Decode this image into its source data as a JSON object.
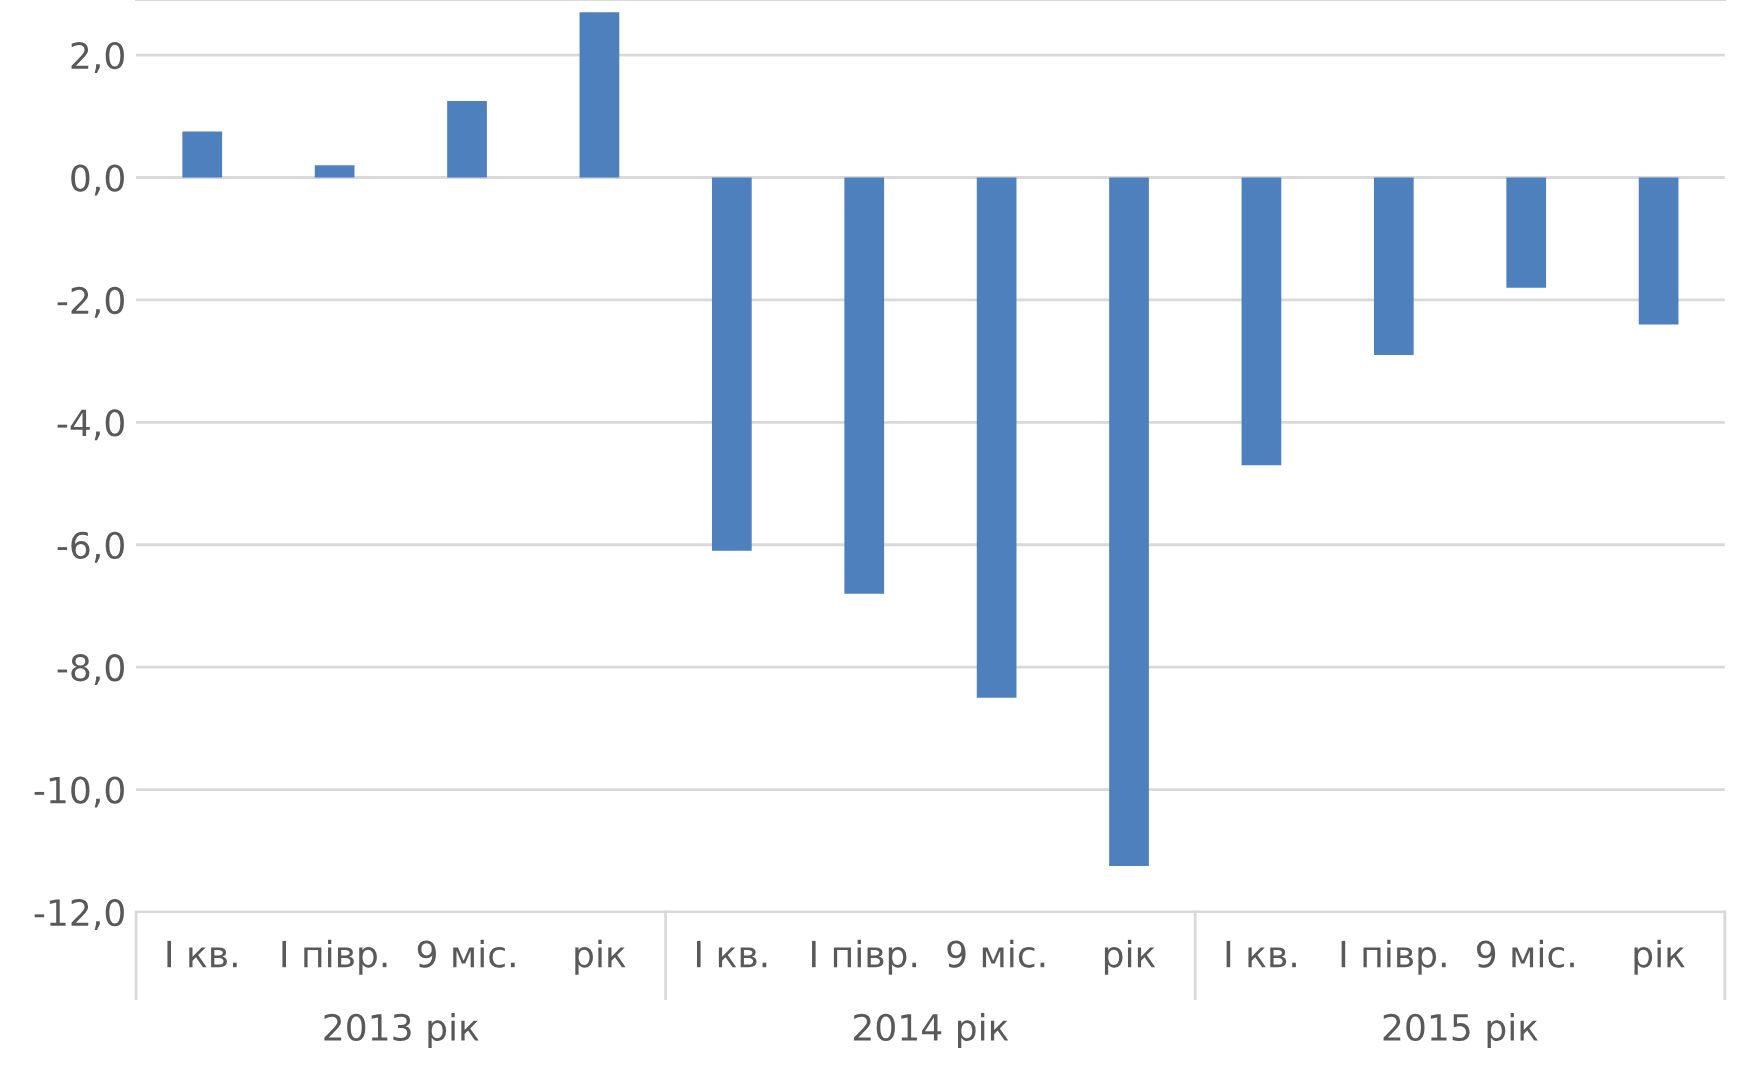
{
  "chart_data": {
    "type": "bar",
    "categories": [
      "I кв.",
      "I півр.",
      "9 міс.",
      "рік",
      "I кв.",
      "I півр.",
      "9 міс.",
      "рік",
      "I кв.",
      "I півр.",
      "9 міс.",
      "рік"
    ],
    "values": [
      0.75,
      0.2,
      1.25,
      2.7,
      -6.1,
      -6.8,
      -8.5,
      -11.25,
      -4.7,
      -2.9,
      -1.8,
      -2.4
    ],
    "color": "#4e80bd",
    "annotations": [
      "2013 рік",
      "2014 рік",
      "2015 рік"
    ],
    "ylim": [
      -12,
      2.9
    ],
    "yticks": [
      {
        "value": 2,
        "label": "2,0"
      },
      {
        "value": 0,
        "label": "0,0"
      },
      {
        "value": -2,
        "label": "-2,0"
      },
      {
        "value": -4,
        "label": "-4,0"
      },
      {
        "value": -6,
        "label": "-6,0"
      },
      {
        "value": -8,
        "label": "-8,0"
      },
      {
        "value": -10,
        "label": "-10,0"
      },
      {
        "value": -12,
        "label": "-12,0"
      }
    ],
    "grid": "y",
    "legend": false
  }
}
